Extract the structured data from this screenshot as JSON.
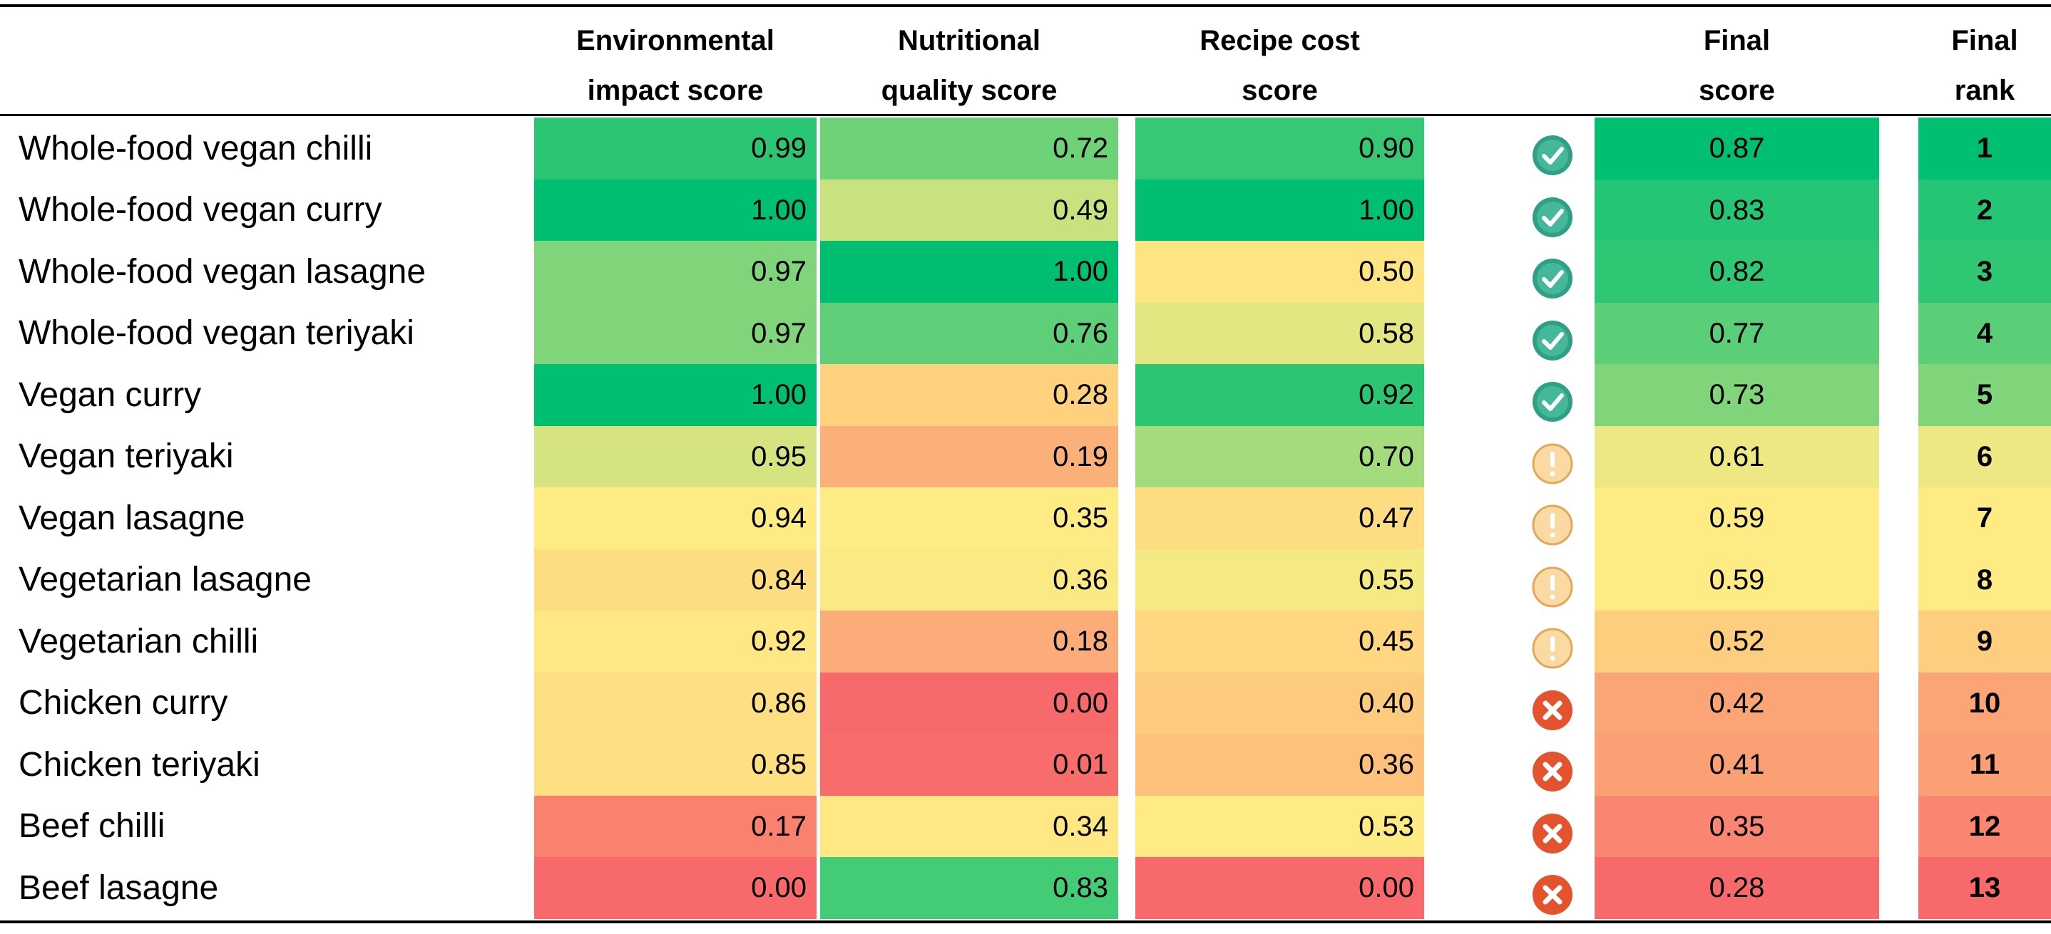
{
  "table": {
    "headers": {
      "environmental": [
        "Environmental",
        "impact score"
      ],
      "nutritional": [
        "Nutritional",
        "quality score"
      ],
      "cost": [
        "Recipe cost",
        "score"
      ],
      "final_score": [
        "Final",
        "score"
      ],
      "final_rank": [
        "Final",
        "rank"
      ]
    },
    "color_scale": [
      "#f8696b",
      "#ffeb84",
      "#00bf71"
    ],
    "rows": [
      {
        "name": "Whole-food vegan chilli",
        "environmental": "0.99",
        "nutritional": "0.72",
        "cost": "0.90",
        "final_score": "0.87",
        "final_rank": 1
      },
      {
        "name": "Whole-food vegan curry",
        "environmental": "1.00",
        "nutritional": "0.49",
        "cost": "1.00",
        "final_score": "0.83",
        "final_rank": 2
      },
      {
        "name": "Whole-food vegan lasagne",
        "environmental": "0.97",
        "nutritional": "1.00",
        "cost": "0.50",
        "final_score": "0.82",
        "final_rank": 3
      },
      {
        "name": "Whole-food vegan teriyaki",
        "environmental": "0.97",
        "nutritional": "0.76",
        "cost": "0.58",
        "final_score": "0.77",
        "final_rank": 4
      },
      {
        "name": "Vegan curry",
        "environmental": "1.00",
        "nutritional": "0.28",
        "cost": "0.92",
        "final_score": "0.73",
        "final_rank": 5
      },
      {
        "name": "Vegan teriyaki",
        "environmental": "0.95",
        "nutritional": "0.19",
        "cost": "0.70",
        "final_score": "0.61",
        "final_rank": 6
      },
      {
        "name": "Vegan lasagne",
        "environmental": "0.94",
        "nutritional": "0.35",
        "cost": "0.47",
        "final_score": "0.59",
        "final_rank": 7
      },
      {
        "name": "Vegetarian lasagne",
        "environmental": "0.84",
        "nutritional": "0.36",
        "cost": "0.55",
        "final_score": "0.59",
        "final_rank": 8
      },
      {
        "name": "Vegetarian chilli",
        "environmental": "0.92",
        "nutritional": "0.18",
        "cost": "0.45",
        "final_score": "0.52",
        "final_rank": 9
      },
      {
        "name": "Chicken curry",
        "environmental": "0.86",
        "nutritional": "0.00",
        "cost": "0.40",
        "final_score": "0.42",
        "final_rank": 10
      },
      {
        "name": "Chicken teriyaki",
        "environmental": "0.85",
        "nutritional": "0.01",
        "cost": "0.36",
        "final_score": "0.41",
        "final_rank": 11
      },
      {
        "name": "Beef chilli",
        "environmental": "0.17",
        "nutritional": "0.34",
        "cost": "0.53",
        "final_score": "0.35",
        "final_rank": 12
      },
      {
        "name": "Beef lasagne",
        "environmental": "0.00",
        "nutritional": "0.83",
        "cost": "0.00",
        "final_score": "0.28",
        "final_rank": 13
      }
    ]
  }
}
